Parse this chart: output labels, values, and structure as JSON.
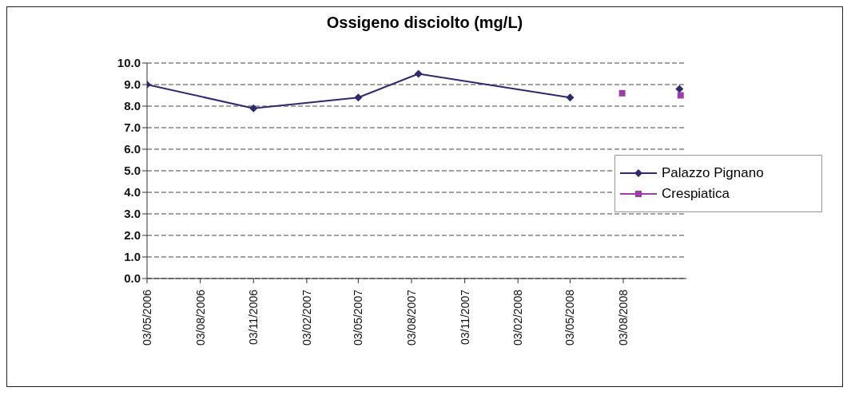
{
  "chart_data": {
    "type": "line",
    "title": "Ossigeno disciolto (mg/L)",
    "xlim": [
      "2006-05-03",
      "2008-11-20"
    ],
    "xticks": [
      {
        "value": "2006-05-03",
        "label": "03/05/2006"
      },
      {
        "value": "2006-08-03",
        "label": "03/08/2006"
      },
      {
        "value": "2006-11-03",
        "label": "03/11/2006"
      },
      {
        "value": "2007-02-03",
        "label": "03/02/2007"
      },
      {
        "value": "2007-05-03",
        "label": "03/05/2007"
      },
      {
        "value": "2007-08-03",
        "label": "03/08/2007"
      },
      {
        "value": "2007-11-03",
        "label": "03/11/2007"
      },
      {
        "value": "2008-02-03",
        "label": "03/02/2008"
      },
      {
        "value": "2008-05-03",
        "label": "03/05/2008"
      },
      {
        "value": "2008-08-03",
        "label": "03/08/2008"
      }
    ],
    "ylim": [
      0,
      10
    ],
    "yticks": [
      {
        "value": 0,
        "label": "0.0"
      },
      {
        "value": 1,
        "label": "1.0"
      },
      {
        "value": 2,
        "label": "2.0"
      },
      {
        "value": 3,
        "label": "3.0"
      },
      {
        "value": 4,
        "label": "4.0"
      },
      {
        "value": 5,
        "label": "5.0"
      },
      {
        "value": 6,
        "label": "6.0"
      },
      {
        "value": 7,
        "label": "7.0"
      },
      {
        "value": 8,
        "label": "8.0"
      },
      {
        "value": 9,
        "label": "9.0"
      },
      {
        "value": 10,
        "label": "10.0"
      }
    ],
    "grid": "y",
    "legend": "right",
    "series": [
      {
        "name": "Palazzo Pignano",
        "color": "#2e2a6e",
        "marker": "diamond",
        "x": [
          "2006-05-03",
          "2006-11-03",
          "2007-05-03",
          "2007-08-15",
          "2008-05-03",
          "2008-08-01",
          "2008-11-08"
        ],
        "values": [
          9.0,
          7.9,
          8.4,
          9.5,
          8.4,
          null,
          8.8
        ]
      },
      {
        "name": "Crespiatica",
        "color": "#9b3fa8",
        "marker": "square",
        "x": [
          "2008-08-01",
          "2008-10-01",
          "2008-11-10"
        ],
        "values": [
          8.6,
          null,
          8.5
        ]
      }
    ]
  }
}
